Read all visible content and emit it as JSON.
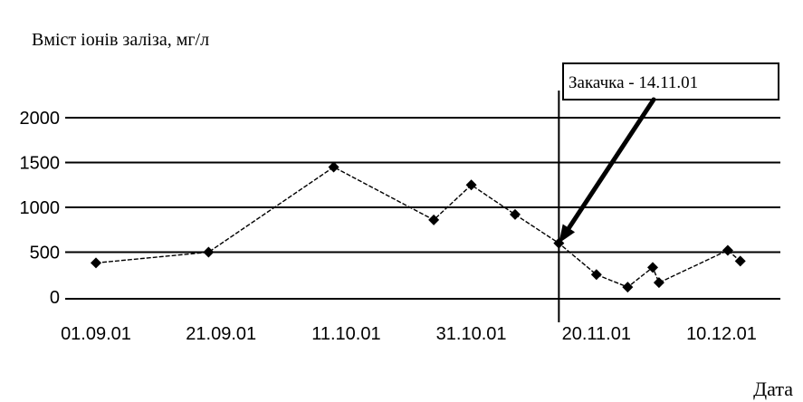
{
  "chart_data": {
    "type": "line",
    "title": "Вміст іонів заліза, мг/л",
    "xlabel": "Дата",
    "ylabel": "",
    "x_axis_type": "date",
    "x_ticks": [
      "01.09.01",
      "21.09.01",
      "11.10.01",
      "31.10.01",
      "20.11.01",
      "10.12.01"
    ],
    "xlim": [
      "2001-09-01",
      "2001-12-20"
    ],
    "y_ticks": [
      0,
      500,
      1000,
      1500,
      2000
    ],
    "ylim": [
      0,
      2000
    ],
    "grid": "horizontal",
    "legend": "none",
    "series": [
      {
        "marker": "diamond",
        "line_style": "dashed",
        "color": "#000000",
        "points": [
          {
            "x": "2001-09-01",
            "y": 380
          },
          {
            "x": "2001-09-19",
            "y": 500
          },
          {
            "x": "2001-10-09",
            "y": 1450
          },
          {
            "x": "2001-10-25",
            "y": 860
          },
          {
            "x": "2001-10-31",
            "y": 1250
          },
          {
            "x": "2001-11-07",
            "y": 920
          },
          {
            "x": "2001-11-14",
            "y": 600
          },
          {
            "x": "2001-11-20",
            "y": 250
          },
          {
            "x": "2001-11-25",
            "y": 110
          },
          {
            "x": "2001-11-29",
            "y": 330
          },
          {
            "x": "2001-11-30",
            "y": 160
          },
          {
            "x": "2001-12-11",
            "y": 520
          },
          {
            "x": "2001-12-13",
            "y": 400
          }
        ]
      }
    ],
    "vertical_line": {
      "x": "2001-11-14"
    },
    "annotation": {
      "text": "Закачка - 14.11.01",
      "points_to": {
        "x": "2001-11-14",
        "y": 600
      }
    }
  }
}
